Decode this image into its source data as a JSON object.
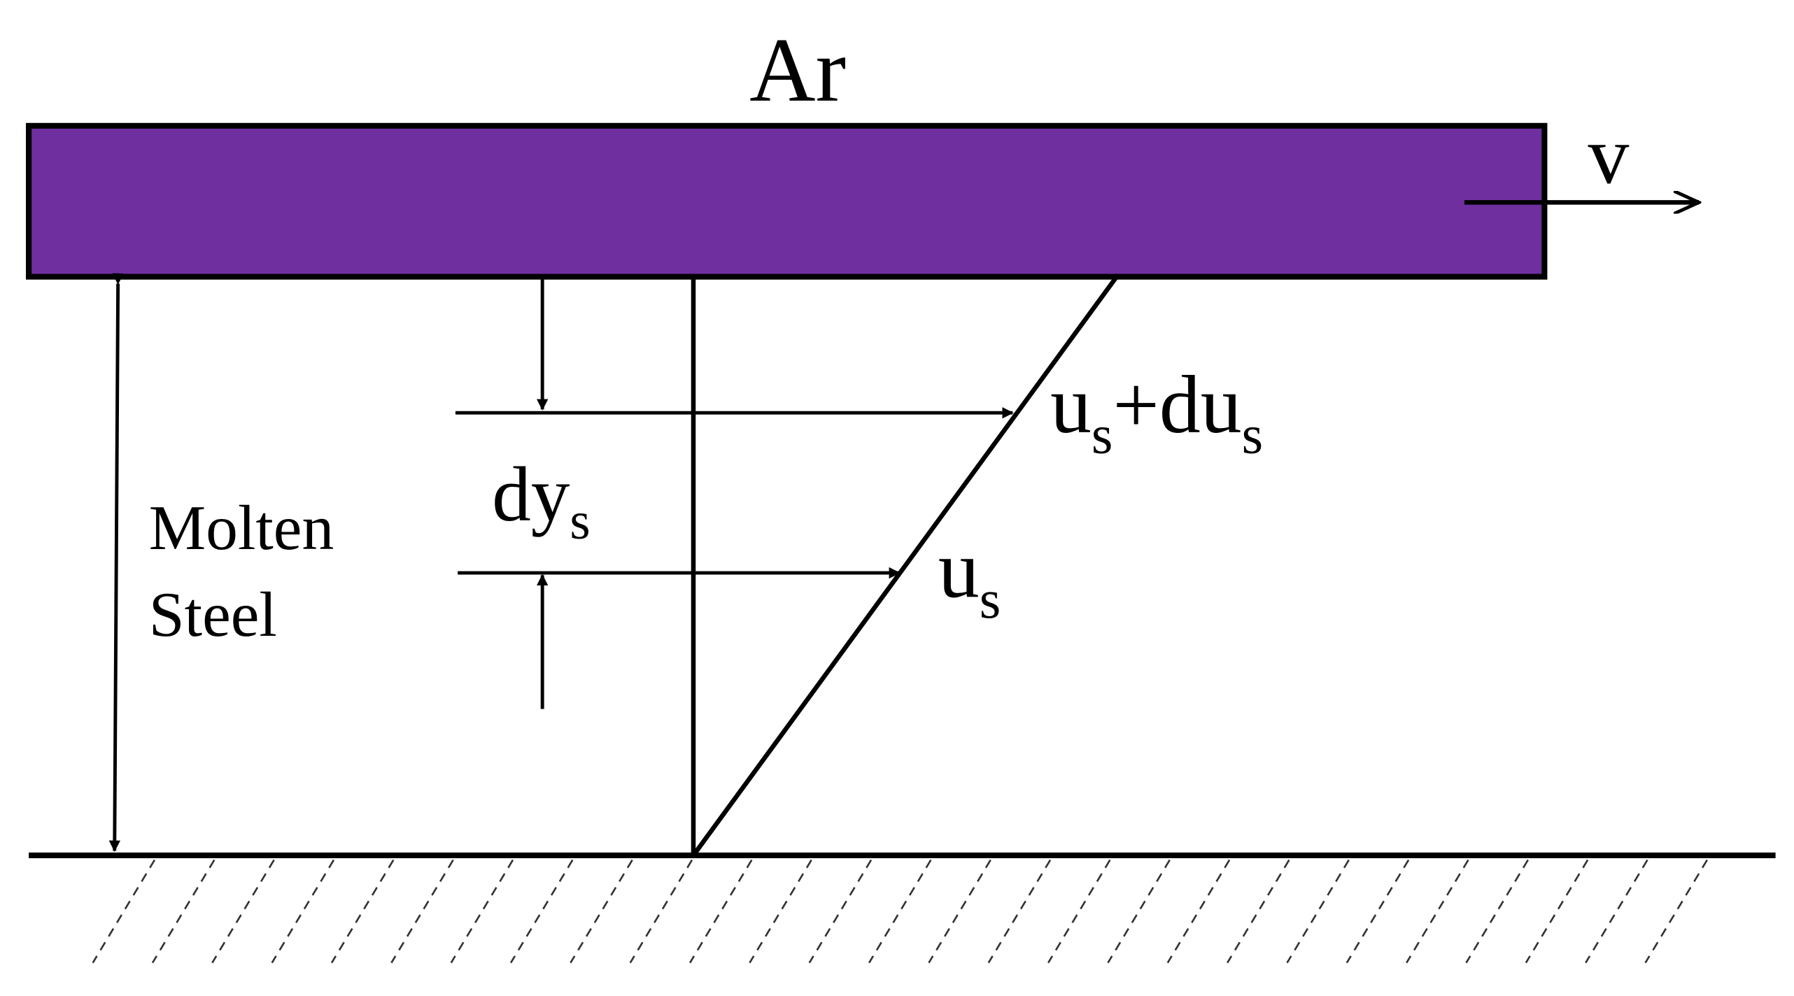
{
  "colors": {
    "argon_bar": "#6F2F9F",
    "stroke": "#000000"
  },
  "labels": {
    "ar": "Ar",
    "v": "v",
    "molten_line1": "Molten",
    "molten_line2": "Steel",
    "dy": "dy",
    "dy_sub": "s",
    "us_du_base": "u",
    "us_du_sub1": "s",
    "us_du_plus": "+du",
    "us_du_sub2": "s",
    "us_base": "u",
    "us_sub": "s"
  }
}
